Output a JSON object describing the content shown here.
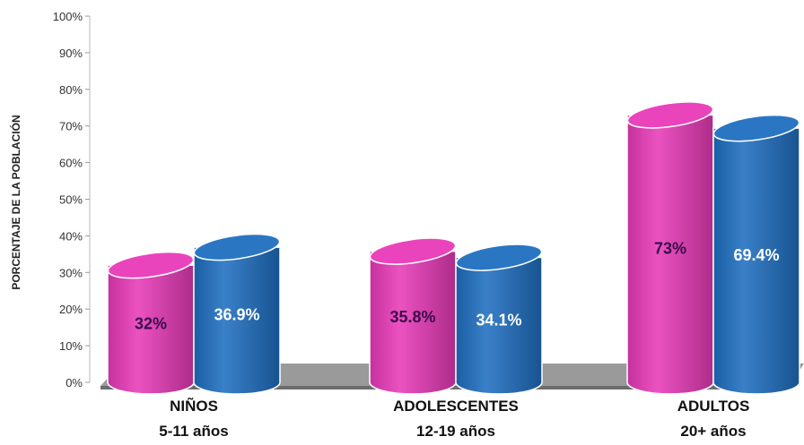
{
  "chart_data": {
    "type": "bar",
    "style": "3d-cylinder",
    "categories": [
      "NIÑOS",
      "ADOLESCENTES",
      "ADULTOS"
    ],
    "category_sublabels": [
      "5-11 años",
      "12-19 años",
      "20+ años"
    ],
    "series": [
      {
        "values": [
          32,
          35.8,
          73
        ],
        "labels": [
          "32%",
          "35.8%",
          "73%"
        ],
        "color": "#e83ab8",
        "label_color": "#3a0a4a"
      },
      {
        "values": [
          36.9,
          34.1,
          69.4
        ],
        "labels": [
          "36.9%",
          "34.1%",
          "69.4%"
        ],
        "color": "#1f6fc0",
        "label_color": "#ffffff"
      }
    ],
    "ylabel": "PORCENTAJE DE LA POBLACIÓN",
    "ylim": [
      0,
      100
    ],
    "yticks": [
      "0%",
      "10%",
      "20%",
      "30%",
      "40%",
      "50%",
      "60%",
      "70%",
      "80%",
      "90%",
      "100%"
    ],
    "floor_color": "#9a9a9a",
    "grid": false,
    "legend": "none"
  }
}
